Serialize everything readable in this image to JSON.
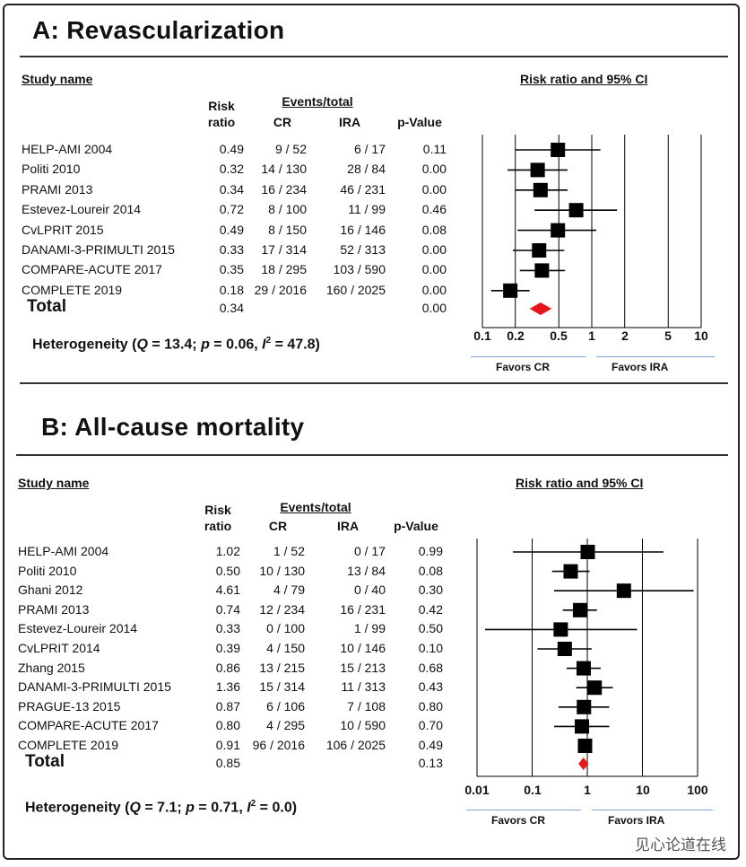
{
  "chart_data": [
    {
      "type": "forest",
      "panel_title": "A: Revascularization",
      "col_study": "Study name",
      "col_rr_line1": "Risk",
      "col_rr_line2": "ratio",
      "col_events": "Events/total",
      "col_cr": "CR",
      "col_ira": "IRA",
      "col_p": "p-Value",
      "plot_title": "Risk ratio and 95% CI",
      "scale": "log",
      "xlim": [
        0.1,
        10
      ],
      "ticks": [
        0.1,
        0.2,
        0.5,
        1,
        2,
        5,
        10
      ],
      "tick_labels": [
        "0.1",
        "0.2",
        "0.5",
        "1",
        "2",
        "5",
        "10"
      ],
      "favors_left": "Favors CR",
      "favors_right": "Favors IRA",
      "studies": [
        {
          "name": "HELP-AMI 2004",
          "rr": "0.49",
          "cr": "9 / 52",
          "ira": "6 / 17",
          "p": "0.11",
          "est": 0.49,
          "lo": 0.2,
          "hi": 1.2
        },
        {
          "name": "Politi 2010",
          "rr": "0.32",
          "cr": "14 / 130",
          "ira": "28 / 84",
          "p": "0.00",
          "est": 0.32,
          "lo": 0.17,
          "hi": 0.6
        },
        {
          "name": "PRAMI 2013",
          "rr": "0.34",
          "cr": "16 / 234",
          "ira": "46 / 231",
          "p": "0.00",
          "est": 0.34,
          "lo": 0.2,
          "hi": 0.6
        },
        {
          "name": "Estevez-Loureir 2014",
          "rr": "0.72",
          "cr": "8 / 100",
          "ira": "11 / 99",
          "p": "0.46",
          "est": 0.72,
          "lo": 0.3,
          "hi": 1.7
        },
        {
          "name": "CvLPRIT 2015",
          "rr": "0.49",
          "cr": "8 / 150",
          "ira": "16 / 146",
          "p": "0.08",
          "est": 0.49,
          "lo": 0.21,
          "hi": 1.1
        },
        {
          "name": "DANAMI-3-PRIMULTI 2015",
          "rr": "0.33",
          "cr": "17 / 314",
          "ira": "52 / 313",
          "p": "0.00",
          "est": 0.33,
          "lo": 0.19,
          "hi": 0.56
        },
        {
          "name": "COMPARE-ACUTE 2017",
          "rr": "0.35",
          "cr": "18 / 295",
          "ira": "103 / 590",
          "p": "0.00",
          "est": 0.35,
          "lo": 0.22,
          "hi": 0.57
        },
        {
          "name": "COMPLETE 2019",
          "rr": "0.18",
          "cr": "29 / 2016",
          "ira": "160 / 2025",
          "p": "0.00",
          "est": 0.18,
          "lo": 0.12,
          "hi": 0.27
        }
      ],
      "total": {
        "name": "Total",
        "rr": "0.34",
        "p": "0.00",
        "est": 0.34,
        "lo": 0.27,
        "hi": 0.43
      },
      "heterogeneity": {
        "prefix": "Heterogeneity (",
        "q_sym": "Q",
        "q_part": " = 13.4; ",
        "p_sym": "p",
        "p_part": " = 0.06, ",
        "i_sym": "I",
        "i_sup": "2",
        "i_part": " = 47.8)"
      }
    },
    {
      "type": "forest",
      "panel_title": "B: All-cause mortality",
      "col_study": "Study name",
      "col_rr_line1": "Risk",
      "col_rr_line2": "ratio",
      "col_events": "Events/total",
      "col_cr": "CR",
      "col_ira": "IRA",
      "col_p": "p-Value",
      "plot_title": "Risk ratio and 95% CI",
      "scale": "log",
      "xlim": [
        0.01,
        100
      ],
      "ticks": [
        0.01,
        0.1,
        1,
        10,
        100
      ],
      "tick_labels": [
        "0.01",
        "0.1",
        "1",
        "10",
        "100"
      ],
      "favors_left": "Favors CR",
      "favors_right": "Favors IRA",
      "studies": [
        {
          "name": "HELP-AMI 2004",
          "rr": "1.02",
          "cr": "1 / 52",
          "ira": "0 / 17",
          "p": "0.99",
          "est": 1.02,
          "lo": 0.045,
          "hi": 24
        },
        {
          "name": "Politi 2010",
          "rr": "0.50",
          "cr": "10 / 130",
          "ira": "13 / 84",
          "p": "0.08",
          "est": 0.5,
          "lo": 0.23,
          "hi": 1.1
        },
        {
          "name": "Ghani 2012",
          "rr": "4.61",
          "cr": "4 / 79",
          "ira": "0 / 40",
          "p": "0.30",
          "est": 4.61,
          "lo": 0.25,
          "hi": 85
        },
        {
          "name": "PRAMI 2013",
          "rr": "0.74",
          "cr": "12 / 234",
          "ira": "16 / 231",
          "p": "0.42",
          "est": 0.74,
          "lo": 0.36,
          "hi": 1.5
        },
        {
          "name": "Estevez-Loureir 2014",
          "rr": "0.33",
          "cr": "0 / 100",
          "ira": "1 / 99",
          "p": "0.50",
          "est": 0.33,
          "lo": 0.014,
          "hi": 8.0
        },
        {
          "name": "CvLPRIT 2014",
          "rr": "0.39",
          "cr": "4 / 150",
          "ira": "10 / 146",
          "p": "0.10",
          "est": 0.39,
          "lo": 0.125,
          "hi": 1.2
        },
        {
          "name": "Zhang 2015",
          "rr": "0.86",
          "cr": "13 / 215",
          "ira": "15 / 213",
          "p": "0.68",
          "est": 0.86,
          "lo": 0.42,
          "hi": 1.75
        },
        {
          "name": "DANAMI-3-PRIMULTI 2015",
          "rr": "1.36",
          "cr": "15 / 314",
          "ira": "11 / 313",
          "p": "0.43",
          "est": 1.36,
          "lo": 0.63,
          "hi": 2.9
        },
        {
          "name": "PRAGUE-13 2015",
          "rr": "0.87",
          "cr": "6 / 106",
          "ira": "7 / 108",
          "p": "0.80",
          "est": 0.87,
          "lo": 0.3,
          "hi": 2.5
        },
        {
          "name": "COMPARE-ACUTE 2017",
          "rr": "0.80",
          "cr": "4 / 295",
          "ira": "10 / 590",
          "p": "0.70",
          "est": 0.8,
          "lo": 0.25,
          "hi": 2.5
        },
        {
          "name": "COMPLETE 2019",
          "rr": "0.91",
          "cr": "96 / 2016",
          "ira": "106 / 2025",
          "p": "0.49",
          "est": 0.91,
          "lo": 0.7,
          "hi": 1.2
        }
      ],
      "total": {
        "name": "Total",
        "rr": "0.85",
        "p": "0.13",
        "est": 0.85,
        "lo": 0.69,
        "hi": 1.05
      },
      "heterogeneity": {
        "prefix": "Heterogeneity (",
        "q_sym": "Q",
        "q_part": " = 7.1; ",
        "p_sym": "p",
        "p_part": " = 0.71, ",
        "i_sym": "I",
        "i_sup": "2",
        "i_part": " = 0.0)"
      }
    }
  ],
  "colors": {
    "marker": "#000000",
    "diamond": "#e8141b",
    "arrow": "#7aa7d8",
    "rule": "#333333"
  },
  "watermark": "见心论道在线"
}
